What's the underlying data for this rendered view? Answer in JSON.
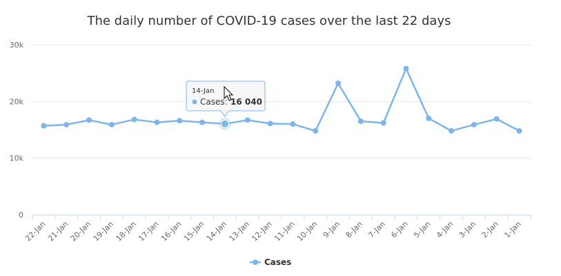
{
  "colors": {
    "series": "#7cb5ec",
    "grid": "#e6e6e6",
    "axis": "#ccd6eb",
    "tooltip_border": "#7cb5ec",
    "tooltip_bg": "#f7f7f7"
  },
  "chart_data": {
    "type": "line",
    "title": "The daily number of COVID-19 cases over the last 22 days",
    "xlabel": "",
    "ylabel": "",
    "categories": [
      "22-Jan",
      "21-Jan",
      "20-Jan",
      "19-Jan",
      "18-Jan",
      "17-Jan",
      "16-Jan",
      "15-Jan",
      "14-Jan",
      "13-Jan",
      "12-Jan",
      "11-Jan",
      "10-Jan",
      "9-Jan",
      "8-Jan",
      "7-Jan",
      "6-Jan",
      "5-Jan",
      "4-Jan",
      "3-Jan",
      "2-Jan",
      "1-Jan"
    ],
    "series": [
      {
        "name": "Cases",
        "values": [
          15700,
          15900,
          16700,
          15900,
          16800,
          16300,
          16600,
          16300,
          16040,
          16700,
          16100,
          16000,
          14800,
          23200,
          16500,
          16200,
          25800,
          17000,
          14800,
          15900,
          16900,
          14800
        ]
      }
    ],
    "ylim": [
      0,
      30000
    ],
    "yticks": [
      {
        "value": 0,
        "label": "0"
      },
      {
        "value": 10000,
        "label": "10k"
      },
      {
        "value": 20000,
        "label": "20k"
      },
      {
        "value": 30000,
        "label": "30k"
      }
    ],
    "grid": true,
    "legend": "bottom-center",
    "tooltip": {
      "category_index": 8,
      "date": "14-Jan",
      "series": "Cases",
      "value_label": "16 040"
    }
  }
}
